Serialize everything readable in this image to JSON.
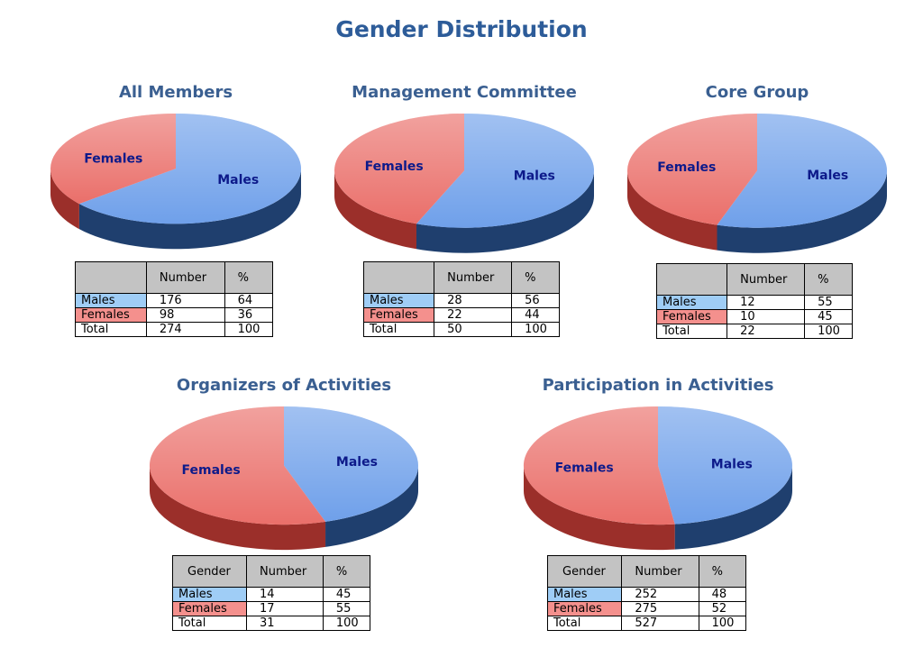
{
  "page": {
    "title": "Gender Distribution"
  },
  "colors": {
    "male_fill": "#6fa0ea",
    "male_side": "#1f3f6e",
    "female_fill": "#ea6f6a",
    "female_side": "#9b2f2a",
    "male_cell": "#9fcdf6",
    "female_cell": "#f4908d",
    "title_color": "#3a5f91",
    "header_gray": "#c3c3c3"
  },
  "chart_data": [
    {
      "type": "pie",
      "title": "All Members",
      "slices": [
        {
          "name": "Males",
          "value": 64
        },
        {
          "name": "Females",
          "value": 36
        }
      ],
      "table": {
        "headers": [
          "",
          "Number",
          "%"
        ],
        "rows": [
          [
            "Males",
            "176",
            "64"
          ],
          [
            "Females",
            "98",
            "36"
          ],
          [
            "Total",
            "274",
            "100"
          ]
        ]
      }
    },
    {
      "type": "pie",
      "title": "Management Committee",
      "slices": [
        {
          "name": "Males",
          "value": 56
        },
        {
          "name": "Females",
          "value": 44
        }
      ],
      "table": {
        "headers": [
          "",
          "Number",
          "%"
        ],
        "rows": [
          [
            "Males",
            "28",
            "56"
          ],
          [
            "Females",
            "22",
            "44"
          ],
          [
            "Total",
            "50",
            "100"
          ]
        ]
      }
    },
    {
      "type": "pie",
      "title": "Core Group",
      "slices": [
        {
          "name": "Males",
          "value": 55
        },
        {
          "name": "Females",
          "value": 45
        }
      ],
      "table": {
        "headers": [
          "",
          "Number",
          "%"
        ],
        "rows": [
          [
            "Males",
            "12",
            "55"
          ],
          [
            "Females",
            "10",
            "45"
          ],
          [
            "Total",
            "22",
            "100"
          ]
        ]
      }
    },
    {
      "type": "pie",
      "title": "Organizers of Activities",
      "slices": [
        {
          "name": "Males",
          "value": 45
        },
        {
          "name": "Females",
          "value": 55
        }
      ],
      "table": {
        "headers": [
          "Gender",
          "Number",
          "%"
        ],
        "rows": [
          [
            "Males",
            "14",
            "45"
          ],
          [
            "Females",
            "17",
            "55"
          ],
          [
            "Total",
            "31",
            "100"
          ]
        ]
      }
    },
    {
      "type": "pie",
      "title": "Participation in Activities",
      "slices": [
        {
          "name": "Males",
          "value": 48
        },
        {
          "name": "Females",
          "value": 52
        }
      ],
      "table": {
        "headers": [
          "Gender",
          "Number",
          "%"
        ],
        "rows": [
          [
            "Males",
            "252",
            "48"
          ],
          [
            "Females",
            "275",
            "52"
          ],
          [
            "Total",
            "527",
            "100"
          ]
        ]
      }
    }
  ]
}
